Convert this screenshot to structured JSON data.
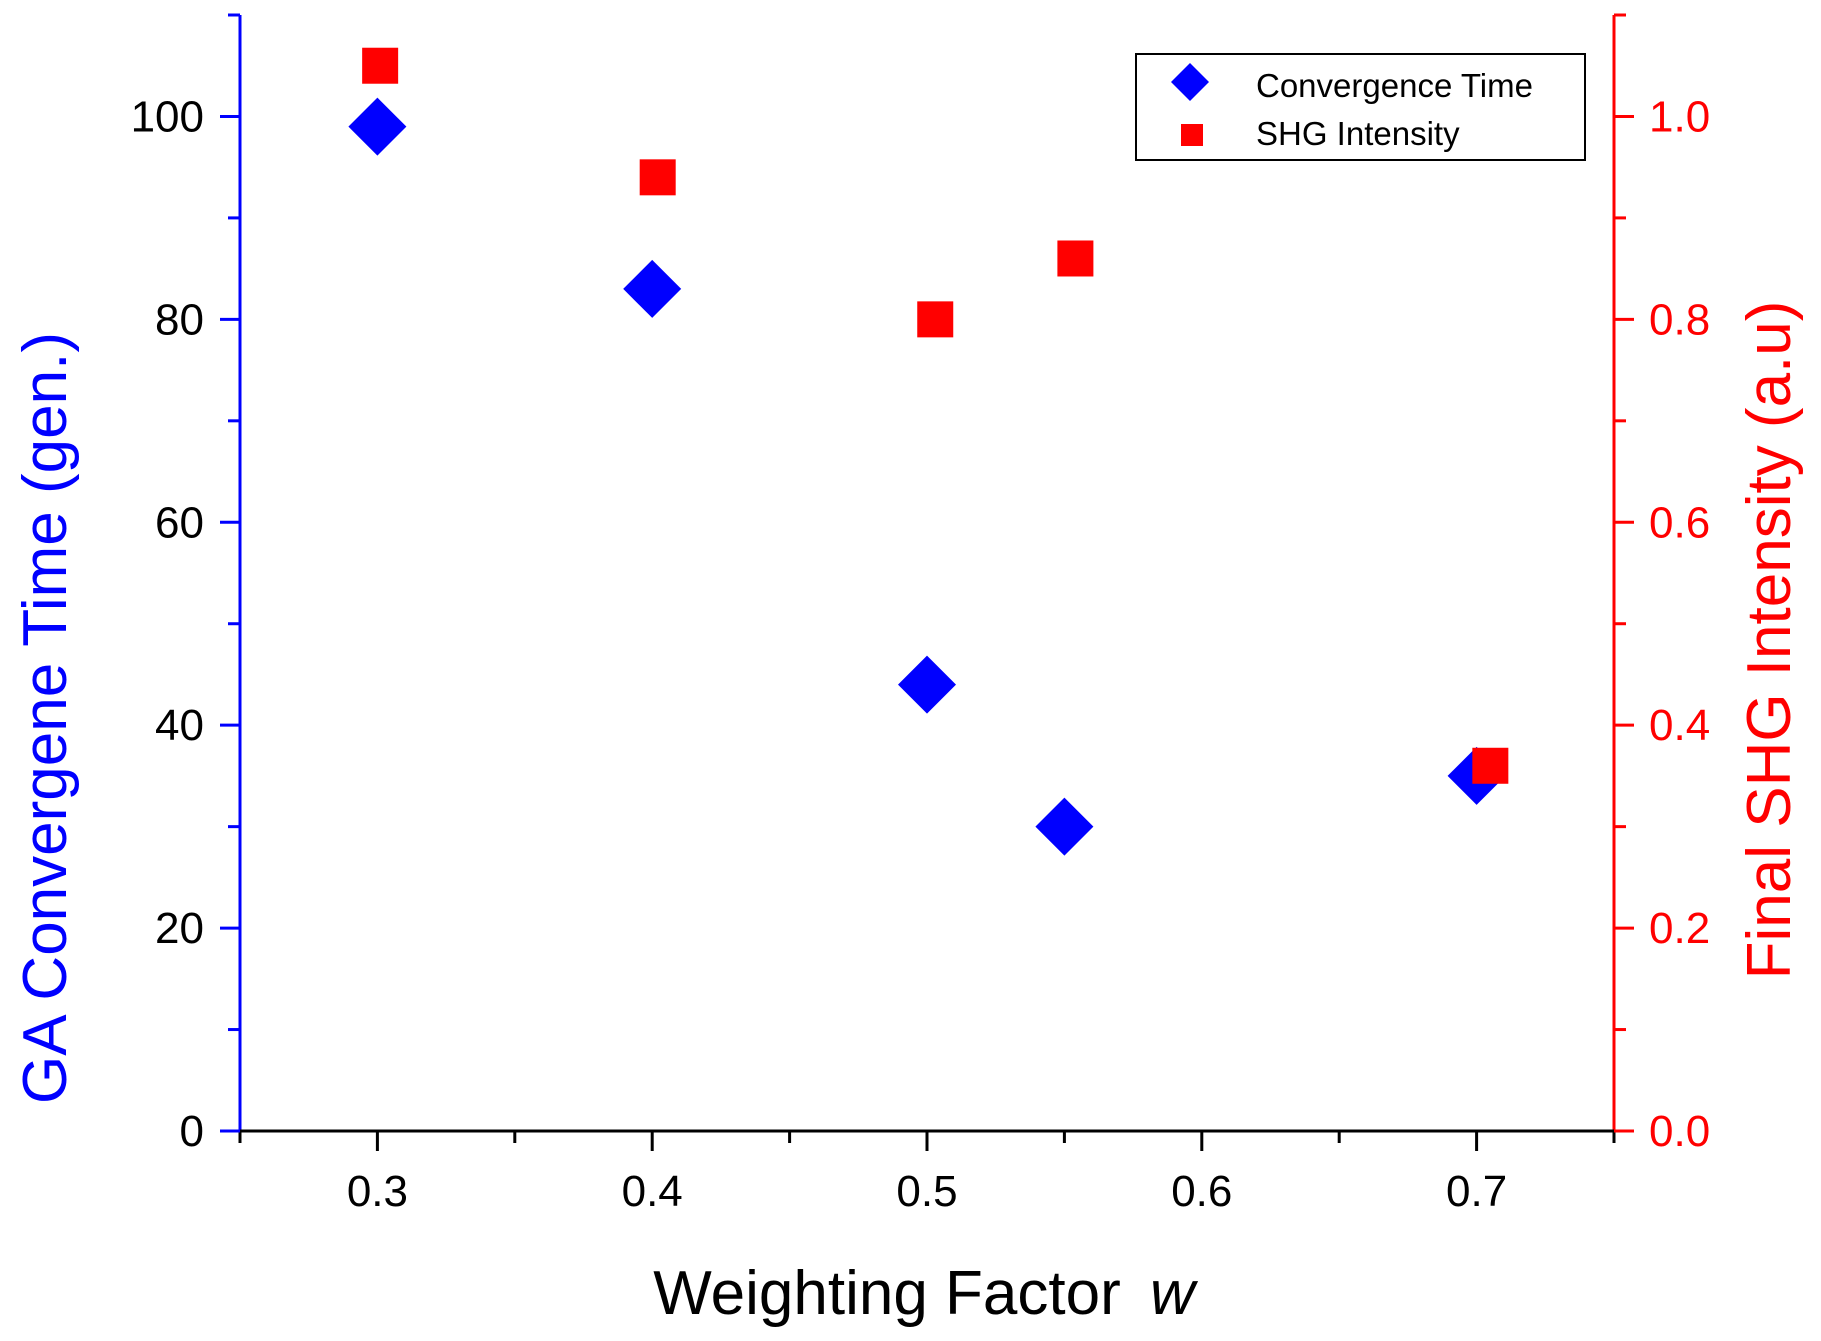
{
  "chart_data": {
    "type": "scatter",
    "xlabel": "Weighting Factor",
    "xlabel_var": "w",
    "ylabel_left": "GA Convergene Time (gen.)",
    "ylabel_right": "Final SHG Intensity (a.u)",
    "xlim": [
      0.25,
      0.75
    ],
    "ylim_left": [
      0,
      110
    ],
    "ylim_right": [
      0,
      1.1
    ],
    "x_ticks": [
      {
        "value": 0.3,
        "label": "0.3"
      },
      {
        "value": 0.4,
        "label": "0.4"
      },
      {
        "value": 0.5,
        "label": "0.5"
      },
      {
        "value": 0.6,
        "label": "0.6"
      },
      {
        "value": 0.7,
        "label": "0.7"
      }
    ],
    "y_left_ticks": [
      {
        "value": 0,
        "label": "0"
      },
      {
        "value": 20,
        "label": "20"
      },
      {
        "value": 40,
        "label": "40"
      },
      {
        "value": 60,
        "label": "60"
      },
      {
        "value": 80,
        "label": "80"
      },
      {
        "value": 100,
        "label": "100"
      }
    ],
    "y_right_ticks": [
      {
        "value": 0.0,
        "label": "0.0"
      },
      {
        "value": 0.2,
        "label": "0.2"
      },
      {
        "value": 0.4,
        "label": "0.4"
      },
      {
        "value": 0.6,
        "label": "0.6"
      },
      {
        "value": 0.8,
        "label": "0.8"
      },
      {
        "value": 1.0,
        "label": "1.0"
      }
    ],
    "series": [
      {
        "name": "Convergence Time",
        "axis": "left",
        "marker": "diamond",
        "color": "#0000ff",
        "points": [
          {
            "x": 0.3,
            "y": 99
          },
          {
            "x": 0.4,
            "y": 83
          },
          {
            "x": 0.5,
            "y": 44
          },
          {
            "x": 0.55,
            "y": 30
          },
          {
            "x": 0.7,
            "y": 35
          }
        ]
      },
      {
        "name": "SHG Intensity",
        "axis": "right",
        "marker": "square",
        "color": "#ff0000",
        "points": [
          {
            "x": 0.301,
            "y": 1.05
          },
          {
            "x": 0.402,
            "y": 0.94
          },
          {
            "x": 0.503,
            "y": 0.8
          },
          {
            "x": 0.554,
            "y": 0.86
          },
          {
            "x": 0.705,
            "y": 0.36
          }
        ]
      }
    ],
    "legend_position": "top-right",
    "colors": {
      "left_axis": "#0000ff",
      "right_axis": "#ff0000",
      "text": "#000000"
    }
  }
}
